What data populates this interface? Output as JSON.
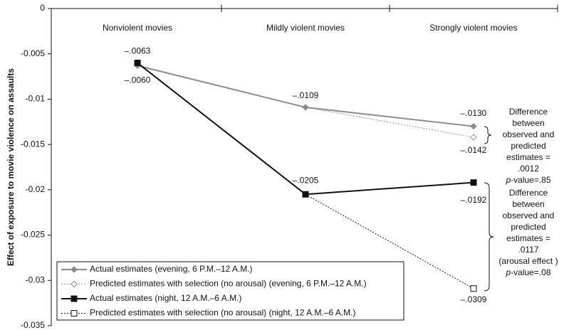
{
  "chart_data": {
    "type": "line",
    "y_label": "Effect of exposure to movie violence on assaults",
    "categories": [
      "Nonviolent movies",
      "Mildly violent movies",
      "Strongly violent movies"
    ],
    "ylim": [
      -0.035,
      0
    ],
    "yticks": [
      0,
      -0.005,
      -0.01,
      -0.015,
      -0.02,
      -0.025,
      -0.03,
      -0.035
    ],
    "series": [
      {
        "name": "Actual estimates (evening, 6 P.M.–12 A.M.)",
        "color": "#8c8c8c",
        "marker": "diamond",
        "filled": true,
        "dashed": false,
        "values": [
          -0.0063,
          -0.0109,
          -0.013
        ],
        "value_labels": [
          "–.0063",
          "–.0109",
          "–.0130"
        ]
      },
      {
        "name": "Predicted estimates with selection (no arousal) (evening, 6 P.M.–12 A.M.)",
        "color": "#8c8c8c",
        "marker": "diamond",
        "filled": false,
        "dashed": true,
        "values": [
          null,
          -0.0109,
          -0.0142
        ],
        "value_labels": [
          null,
          null,
          "–.0142"
        ]
      },
      {
        "name": "Actual estimates (night, 12 A.M.–6 A.M.)",
        "color": "#111111",
        "marker": "square",
        "filled": true,
        "dashed": false,
        "values": [
          -0.006,
          -0.0205,
          -0.0192
        ],
        "value_labels": [
          "–.0060",
          "–.0205",
          "–.0192"
        ]
      },
      {
        "name": "Predicted estimates with selection (no arousal) (night, 12 A.M.–6 A.M.)",
        "color": "#111111",
        "marker": "square",
        "filled": false,
        "dashed": true,
        "values": [
          null,
          -0.0205,
          -0.0309
        ],
        "value_labels": [
          null,
          null,
          "–.0309"
        ]
      }
    ],
    "annotations": [
      {
        "lines": [
          "Difference",
          "between",
          "observed and",
          "predicted",
          "estimates =",
          ".0012"
        ],
        "p": "p",
        "p_rest": "-value=.85"
      },
      {
        "lines": [
          "Difference",
          "between",
          "observed and",
          "predicted",
          "estimates =",
          ".0117",
          "(arousal effect )"
        ],
        "p": "p",
        "p_rest": "-value=.08"
      }
    ]
  }
}
